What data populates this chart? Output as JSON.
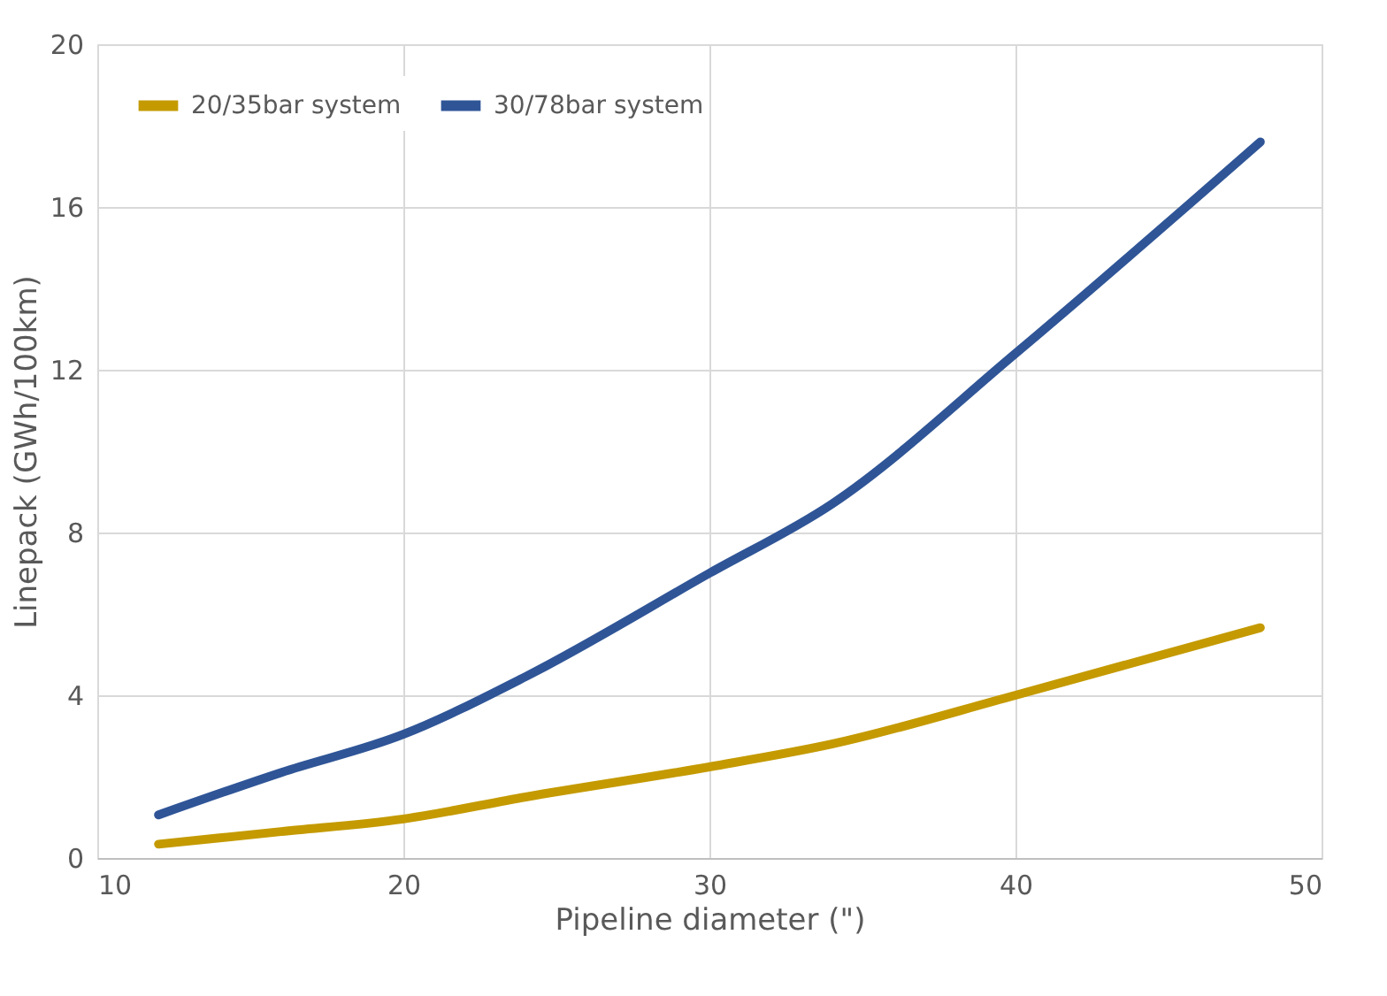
{
  "chart_data": {
    "type": "line",
    "xlabel": "Pipeline diameter (\")",
    "ylabel": "Linepack (GWh/100km)",
    "x": [
      12,
      16,
      20,
      24,
      30,
      34,
      40,
      48
    ],
    "series": [
      {
        "name": "20/35bar system",
        "color": "#c49a00",
        "values": [
          0.34,
          0.65,
          0.96,
          1.5,
          2.24,
          2.8,
          4.0,
          5.66
        ]
      },
      {
        "name": "30/78bar system",
        "color": "#2f5597",
        "values": [
          1.06,
          2.1,
          3.04,
          4.46,
          7.0,
          8.7,
          12.4,
          17.6
        ]
      }
    ],
    "xlim": [
      10,
      50
    ],
    "xticks": [
      10,
      20,
      30,
      40,
      50
    ],
    "ylim": [
      0,
      20
    ],
    "yticks": [
      0,
      4,
      8,
      12,
      16,
      20
    ],
    "grid": true,
    "legend": "top left",
    "marker": "none",
    "line_style": "solid"
  }
}
